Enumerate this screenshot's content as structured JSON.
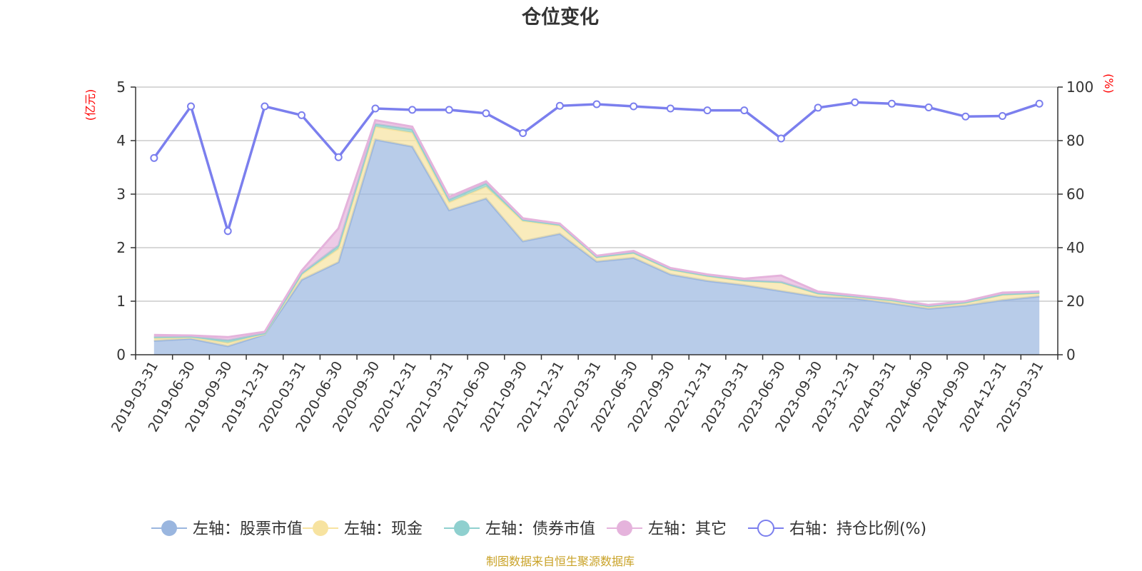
{
  "chart_data": {
    "type": "area",
    "title": "仓位变化",
    "y_left_label": "(亿元)",
    "y_right_label": "(%)",
    "y_left_range": [
      0,
      5
    ],
    "y_left_ticks": [
      "0",
      "1",
      "2",
      "3",
      "4",
      "5"
    ],
    "y_right_range": [
      0,
      100
    ],
    "y_right_ticks": [
      "0",
      "20",
      "40",
      "60",
      "80",
      "100"
    ],
    "categories": [
      "2019-03-31",
      "2019-06-30",
      "2019-09-30",
      "2019-12-31",
      "2020-03-31",
      "2020-06-30",
      "2020-09-30",
      "2020-12-31",
      "2021-03-31",
      "2021-06-30",
      "2021-09-30",
      "2021-12-31",
      "2022-03-31",
      "2022-06-30",
      "2022-09-30",
      "2022-12-31",
      "2023-03-31",
      "2023-06-30",
      "2023-09-30",
      "2023-12-31",
      "2024-03-31",
      "2024-06-30",
      "2024-09-30",
      "2024-12-31",
      "2025-03-31"
    ],
    "series": [
      {
        "name": "左轴：股票市值",
        "axis": "left",
        "stack": true,
        "color": "#9ab6df",
        "values": [
          0.26,
          0.3,
          0.16,
          0.38,
          1.4,
          1.73,
          4.02,
          3.89,
          2.7,
          2.92,
          2.12,
          2.26,
          1.74,
          1.81,
          1.5,
          1.38,
          1.3,
          1.19,
          1.08,
          1.05,
          0.96,
          0.86,
          0.92,
          1.02,
          1.09
        ]
      },
      {
        "name": "左轴：现金",
        "axis": "left",
        "stack": true,
        "color": "#f7e3a0",
        "values": [
          0.05,
          0.03,
          0.06,
          0.01,
          0.1,
          0.25,
          0.24,
          0.26,
          0.15,
          0.22,
          0.38,
          0.15,
          0.08,
          0.09,
          0.09,
          0.09,
          0.08,
          0.16,
          0.06,
          0.03,
          0.05,
          0.04,
          0.05,
          0.1,
          0.06
        ]
      },
      {
        "name": "左轴：债券市值",
        "axis": "left",
        "stack": true,
        "color": "#8fd0cf",
        "values": [
          0.02,
          0.01,
          0.05,
          0.01,
          0.02,
          0.06,
          0.05,
          0.06,
          0.05,
          0.06,
          0.02,
          0.02,
          0.01,
          0.01,
          0.01,
          0.01,
          0.01,
          0.01,
          0.01,
          0.01,
          0.01,
          0.01,
          0.01,
          0.01,
          0.01
        ]
      },
      {
        "name": "左轴：其它",
        "axis": "left",
        "stack": true,
        "color": "#e5b3dc",
        "values": [
          0.04,
          0.02,
          0.06,
          0.03,
          0.05,
          0.32,
          0.07,
          0.05,
          0.05,
          0.04,
          0.03,
          0.02,
          0.02,
          0.03,
          0.02,
          0.02,
          0.03,
          0.12,
          0.03,
          0.02,
          0.02,
          0.02,
          0.02,
          0.03,
          0.02
        ]
      },
      {
        "name": "右轴：持仓比例(%)",
        "axis": "right",
        "type": "line",
        "color": "#7b7fee",
        "values": [
          73.5,
          92.8,
          46.2,
          92.8,
          89.5,
          73.8,
          92.0,
          91.5,
          91.5,
          90.2,
          82.8,
          93.0,
          93.6,
          92.8,
          92.0,
          91.3,
          91.3,
          80.8,
          92.3,
          94.3,
          93.8,
          92.4,
          89.0,
          89.2,
          93.8
        ]
      }
    ],
    "legend_position": "bottom",
    "grid": true
  },
  "source_note": "制图数据来自恒生聚源数据库"
}
